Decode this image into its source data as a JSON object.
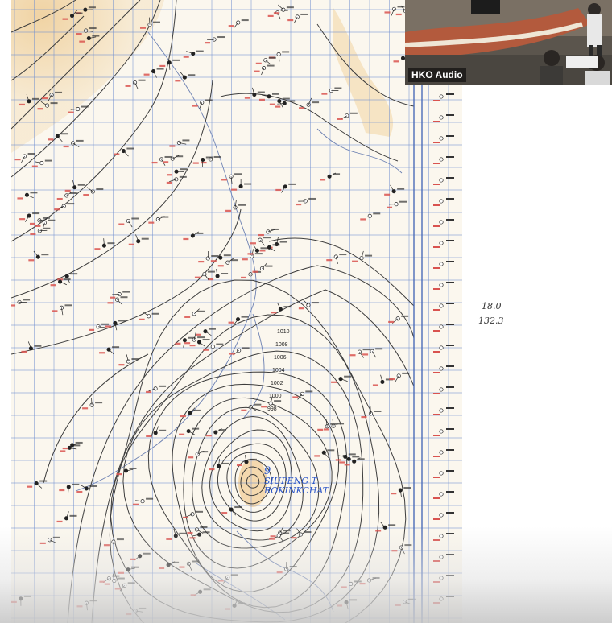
{
  "window": {
    "title": ""
  },
  "video": {
    "label": "HKO Audio",
    "icons": [
      "camera-feed"
    ]
  },
  "map": {
    "annotation_line1": "9",
    "annotation_line2": "SIUPENG T",
    "annotation_line3": "ROKINKCHAT",
    "isobar_labels": [
      "998",
      "1000",
      "1002",
      "1004",
      "1006",
      "1008",
      "1010"
    ]
  },
  "side_notes": {
    "lat": "18.0",
    "lon": "132.3"
  },
  "colors": {
    "land": "#f3dcb4",
    "sea": "#fbf7ee",
    "grid": "#6f8fd0",
    "isobar": "#3d3d3d",
    "annotation": "#2c56c8"
  }
}
